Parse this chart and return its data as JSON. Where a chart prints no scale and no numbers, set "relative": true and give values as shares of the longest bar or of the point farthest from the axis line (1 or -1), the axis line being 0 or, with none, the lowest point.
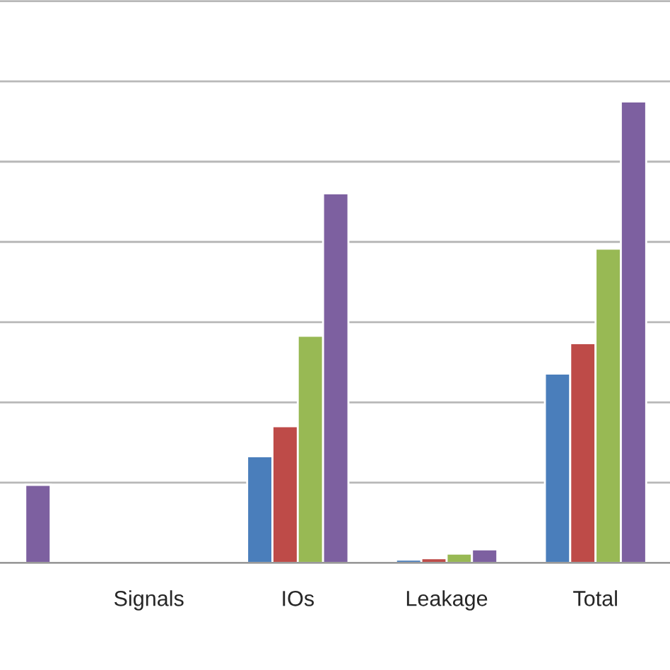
{
  "chart_data": {
    "type": "bar",
    "relative": true,
    "grid": "y",
    "legend": false,
    "categories": [
      null,
      "Signals",
      "IOs",
      "Leakage",
      "Total"
    ],
    "series": [
      {
        "color": "#4a7ebb",
        "values": [
          null,
          null,
          0.231,
          0.007,
          0.41
        ]
      },
      {
        "color": "#be4b48",
        "values": [
          null,
          null,
          0.296,
          0.01,
          0.476
        ]
      },
      {
        "color": "#98b954",
        "values": [
          null,
          null,
          0.492,
          0.02,
          0.681
        ]
      },
      {
        "color": "#7d60a0",
        "values": [
          0.169,
          null,
          0.801,
          0.029,
          1
        ]
      }
    ]
  }
}
